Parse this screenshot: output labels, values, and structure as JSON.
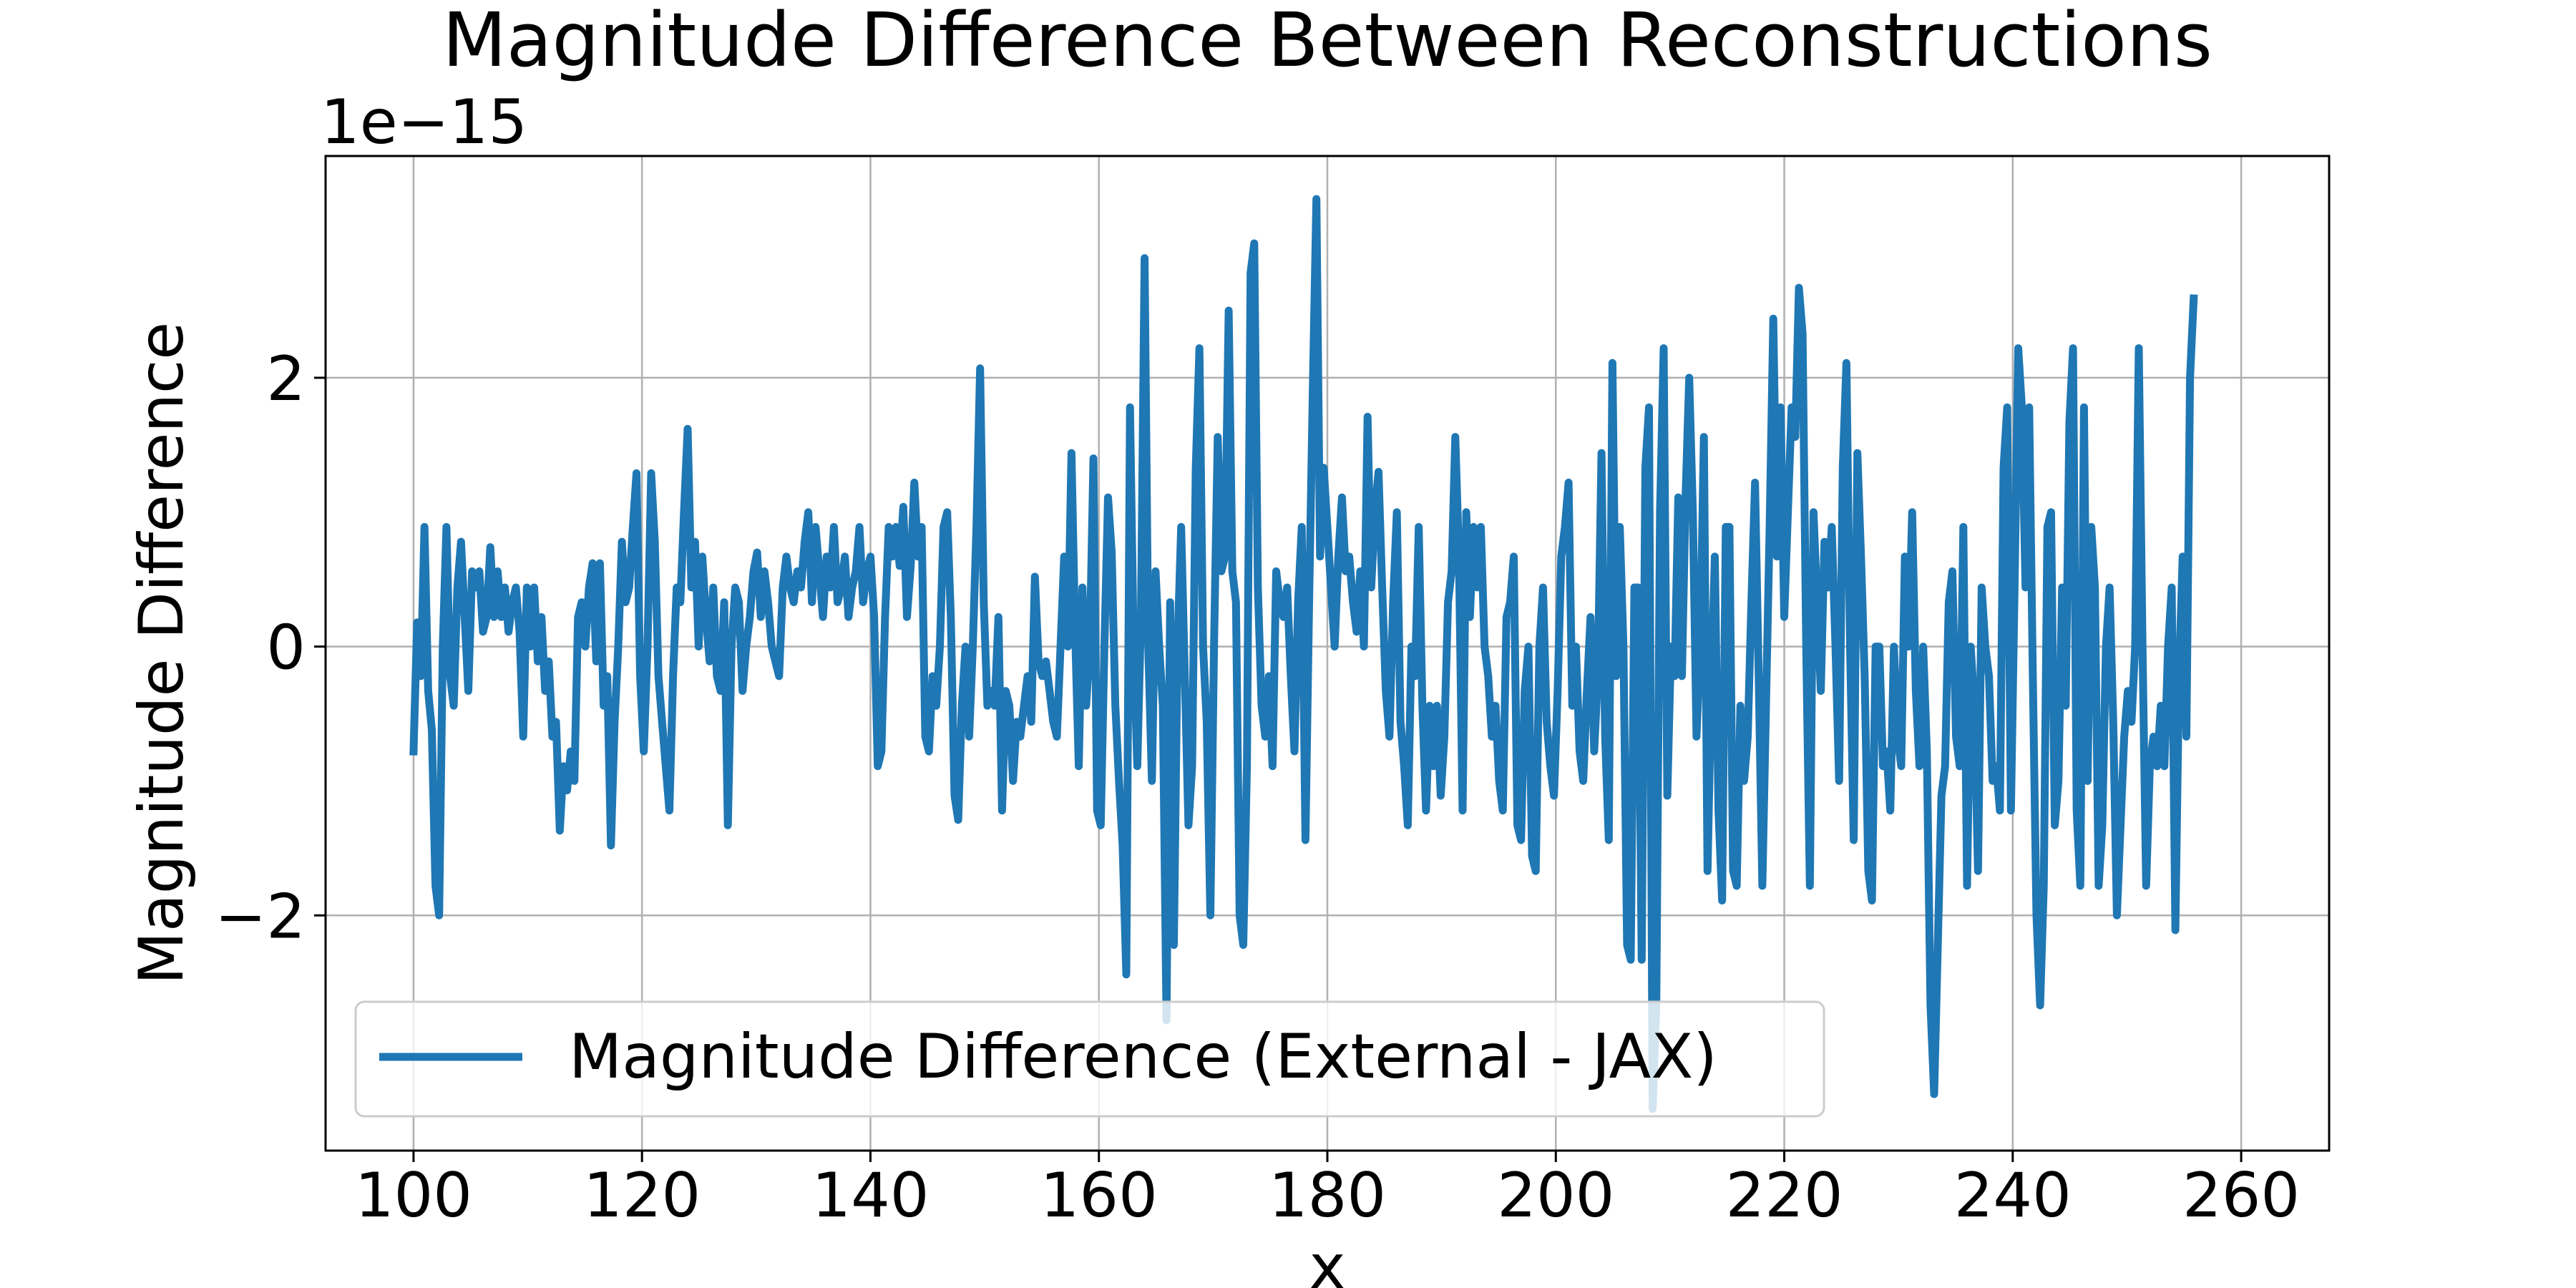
{
  "chart_data": {
    "type": "line",
    "title": "Magnitude Difference Between Reconstructions",
    "xlabel": "x",
    "ylabel": "Magnitude Difference",
    "y_offset_label": "1e−15",
    "xlim": [
      92.3,
      267.7
    ],
    "ylim": [
      -3.75,
      3.65
    ],
    "x_ticks": [
      100,
      120,
      140,
      160,
      180,
      200,
      220,
      240,
      260
    ],
    "x_tick_labels": [
      "100",
      "120",
      "140",
      "160",
      "180",
      "200",
      "220",
      "240",
      "260"
    ],
    "y_ticks": [
      -2,
      0,
      2
    ],
    "y_tick_labels": [
      "−2",
      "0",
      "2"
    ],
    "grid": true,
    "legend_placement": "lower-left",
    "series": [
      {
        "name": "Magnitude Difference (External - JAX)",
        "color": "#1f77b4",
        "x_start": 100,
        "x_step": 0.32,
        "values": [
          -0.78,
          0.18,
          -0.22,
          0.89,
          -0.33,
          -0.62,
          -1.78,
          -2.0,
          0.0,
          0.89,
          -0.22,
          -0.44,
          0.44,
          0.78,
          0.22,
          -0.33,
          0.56,
          0.44,
          0.56,
          0.11,
          0.22,
          0.74,
          0.22,
          0.56,
          0.22,
          0.44,
          0.11,
          0.33,
          0.44,
          0.11,
          -0.67,
          0.44,
          0.0,
          0.44,
          -0.11,
          0.22,
          -0.33,
          -0.11,
          -0.67,
          -0.56,
          -1.37,
          -0.89,
          -1.07,
          -0.78,
          -1.0,
          0.22,
          0.33,
          0.0,
          0.44,
          0.62,
          -0.11,
          0.62,
          -0.44,
          -0.22,
          -1.48,
          -0.56,
          0.0,
          0.78,
          0.33,
          0.44,
          0.89,
          1.29,
          -0.22,
          -0.78,
          0.0,
          1.29,
          0.78,
          -0.22,
          -0.56,
          -0.89,
          -1.22,
          -0.22,
          0.44,
          0.33,
          1.0,
          1.62,
          0.44,
          0.78,
          0.0,
          0.67,
          0.22,
          -0.11,
          0.44,
          -0.22,
          -0.33,
          0.33,
          -1.33,
          0.0,
          0.44,
          0.33,
          -0.33,
          0.0,
          0.22,
          0.56,
          0.7,
          0.22,
          0.56,
          0.33,
          0.0,
          -0.11,
          -0.22,
          0.44,
          0.67,
          0.44,
          0.33,
          0.56,
          0.44,
          0.78,
          1.0,
          0.33,
          0.89,
          0.56,
          0.22,
          0.67,
          0.44,
          0.89,
          0.33,
          0.44,
          0.67,
          0.22,
          0.44,
          0.56,
          0.89,
          0.33,
          0.56,
          0.67,
          0.22,
          -0.89,
          -0.78,
          0.22,
          0.89,
          0.67,
          0.89,
          0.6,
          1.04,
          0.22,
          0.6,
          1.22,
          0.67,
          0.89,
          -0.67,
          -0.78,
          -0.22,
          -0.44,
          0.0,
          0.89,
          1.0,
          0.22,
          -1.11,
          -1.29,
          -0.44,
          0.0,
          -0.67,
          0.0,
          0.89,
          2.07,
          0.33,
          -0.44,
          -0.33,
          -0.44,
          0.22,
          -1.22,
          -0.33,
          -0.44,
          -1.0,
          -0.56,
          -0.67,
          -0.44,
          -0.22,
          -0.56,
          0.52,
          -0.11,
          -0.22,
          -0.11,
          -0.33,
          -0.56,
          -0.67,
          0.0,
          0.67,
          0.0,
          1.44,
          0.11,
          -0.89,
          0.44,
          -0.44,
          0.0,
          1.4,
          -1.22,
          -1.33,
          0.0,
          1.11,
          0.7,
          -0.44,
          -1.0,
          -1.48,
          -2.44,
          1.78,
          0.0,
          -0.89,
          0.22,
          2.89,
          0.0,
          -1.0,
          0.56,
          0.0,
          -0.44,
          -2.78,
          0.33,
          -2.22,
          0.0,
          0.89,
          -0.22,
          -1.33,
          -0.89,
          1.33,
          2.22,
          0.0,
          -0.56,
          -2.0,
          0.0,
          1.56,
          0.56,
          0.67,
          2.5,
          0.56,
          0.33,
          -2.0,
          -2.22,
          -0.89,
          2.78,
          3.0,
          0.44,
          -0.44,
          -0.67,
          -0.22,
          -0.89,
          0.56,
          0.33,
          0.22,
          0.44,
          -0.22,
          -0.78,
          0.33,
          0.89,
          -1.44,
          0.33,
          1.89,
          3.33,
          0.67,
          1.33,
          0.89,
          0.44,
          0.0,
          0.67,
          1.11,
          0.56,
          0.67,
          0.33,
          0.11,
          0.56,
          0.0,
          1.71,
          0.44,
          1.0,
          1.3,
          0.44,
          -0.33,
          -0.67,
          0.33,
          1.0,
          -0.56,
          -0.89,
          -1.33,
          0.0,
          -0.22,
          0.89,
          -0.44,
          -1.22,
          -0.44,
          -0.89,
          -0.44,
          -1.11,
          -0.67,
          0.33,
          0.56,
          1.56,
          0.67,
          -1.22,
          1.0,
          0.22,
          0.89,
          0.44,
          0.89,
          0.0,
          -0.22,
          -0.67,
          -0.44,
          -1.0,
          -1.22,
          0.22,
          0.33,
          0.67,
          -1.33,
          -1.44,
          -0.33,
          0.0,
          -1.56,
          -1.67,
          0.0,
          0.44,
          -0.56,
          -0.89,
          -1.11,
          -0.33,
          0.67,
          0.89,
          1.22,
          -0.44,
          0.0,
          -0.78,
          -1.0,
          -0.33,
          0.22,
          -0.78,
          -0.22,
          1.44,
          -0.67,
          -1.44,
          2.11,
          -0.22,
          0.89,
          0.0,
          -2.22,
          -2.33,
          0.44,
          0.44,
          -2.33,
          1.33,
          1.78,
          -3.44,
          -2.67,
          1.0,
          2.22,
          -1.11,
          0.0,
          -0.22,
          1.11,
          -0.22,
          1.11,
          2.0,
          1.0,
          -0.67,
          0.0,
          1.56,
          -1.67,
          -0.33,
          0.67,
          -1.22,
          -1.89,
          0.89,
          0.89,
          -1.67,
          -1.78,
          -0.44,
          -1.0,
          -0.67,
          0.33,
          1.22,
          -0.22,
          -1.78,
          -0.44,
          0.89,
          2.44,
          0.67,
          1.78,
          0.22,
          1.0,
          1.78,
          1.56,
          2.67,
          2.33,
          0.0,
          -1.78,
          1.0,
          0.33,
          -0.33,
          0.78,
          0.44,
          0.89,
          0.0,
          -1.0,
          1.33,
          2.11,
          0.0,
          -1.44,
          1.44,
          0.67,
          -0.22,
          -1.67,
          -1.89,
          0.0,
          0.0,
          -0.89,
          -0.78,
          -1.22,
          0.0,
          -0.67,
          -0.89,
          0.67,
          0.0,
          1.0,
          -0.33,
          -0.89,
          0.0,
          -0.78,
          -2.67,
          -3.33,
          -2.22,
          -1.11,
          -0.89,
          0.33,
          0.56,
          -0.67,
          -0.89,
          0.89,
          -1.78,
          0.0,
          -0.44,
          -1.67,
          0.44,
          0.0,
          -0.22,
          -1.0,
          -0.89,
          -1.22,
          1.33,
          1.78,
          -1.22,
          0.44,
          2.22,
          1.78,
          0.44,
          1.78,
          -0.22,
          -2.0,
          -2.67,
          -1.78,
          0.89,
          1.0,
          -1.33,
          -1.0,
          0.44,
          -0.44,
          1.67,
          2.22,
          -1.22,
          -1.78,
          1.78,
          -1.0,
          0.89,
          0.44,
          -1.78,
          -1.33,
          0.0,
          0.44,
          -0.56,
          -2.0,
          -1.33,
          -0.67,
          -0.33,
          -0.56,
          0.0,
          2.22,
          0.0,
          -1.78,
          -0.89,
          -0.67,
          -0.89,
          -0.44,
          -0.89,
          0.0,
          0.44,
          -2.11,
          -0.22,
          0.67,
          -0.67,
          2.0,
          2.59
        ]
      }
    ]
  }
}
